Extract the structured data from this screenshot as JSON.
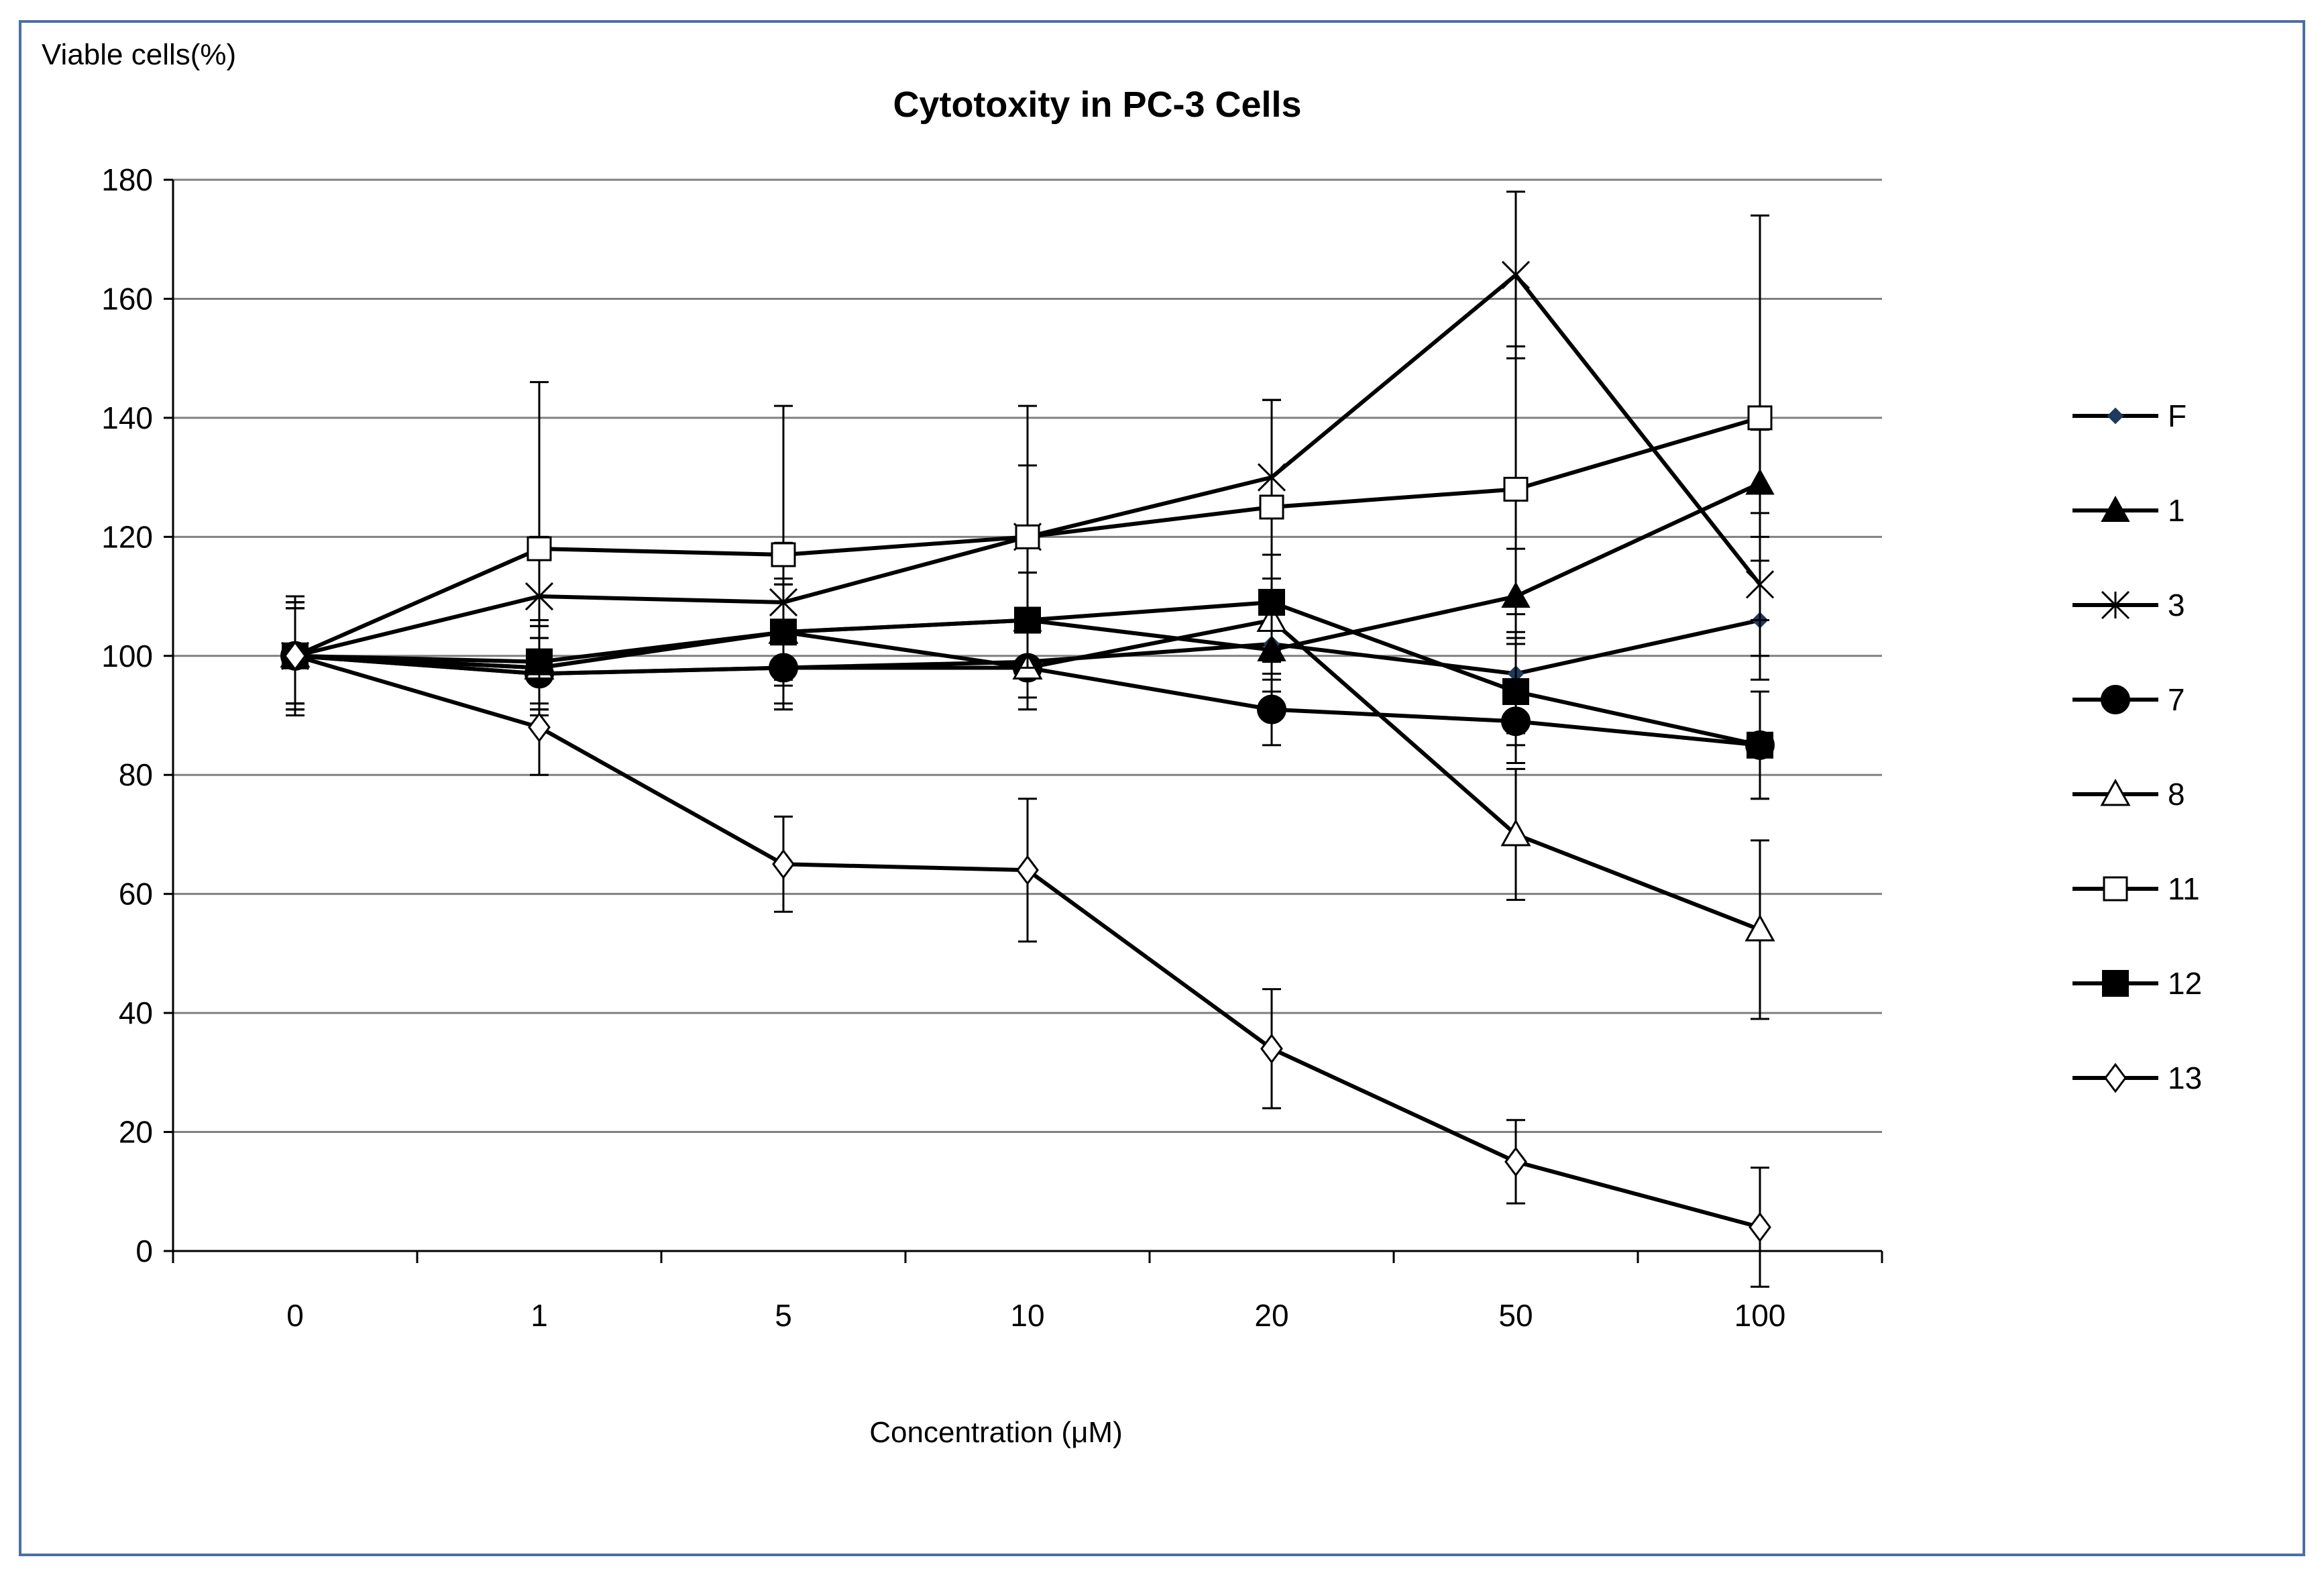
{
  "chart_data": {
    "type": "line",
    "title": "Cytotoxity in PC-3 Cells",
    "ylabel": "Viable cells(%)",
    "xlabel": "Concentration  (μM)",
    "categories": [
      "0",
      "1",
      "5",
      "10",
      "20",
      "50",
      "100"
    ],
    "ylim": [
      0,
      180
    ],
    "yticks": [
      0,
      20,
      40,
      60,
      80,
      100,
      120,
      140,
      160,
      180
    ],
    "grid": true,
    "legend_position": "right",
    "colors": {
      "line": "#000000",
      "grid": "#808080",
      "frame": "#4a6fa5",
      "marker_F": "#1f3a5f"
    },
    "series": [
      {
        "name": "F",
        "marker": "small-diamond-filled",
        "values": [
          100,
          97,
          98,
          99,
          102,
          97,
          106
        ],
        "errors": [
          9,
          6,
          7,
          6,
          6,
          10,
          10
        ]
      },
      {
        "name": "1",
        "marker": "triangle-filled",
        "values": [
          100,
          98,
          104,
          106,
          101,
          110,
          129
        ],
        "errors": [
          9,
          7,
          9,
          8,
          7,
          8,
          9
        ]
      },
      {
        "name": "3",
        "marker": "asterisk",
        "values": [
          100,
          110,
          109,
          120,
          130,
          164,
          112
        ],
        "errors": [
          10,
          10,
          10,
          12,
          13,
          14,
          12
        ]
      },
      {
        "name": "7",
        "marker": "circle-filled",
        "values": [
          100,
          97,
          98,
          98,
          91,
          89,
          85
        ],
        "errors": [
          8,
          6,
          7,
          7,
          6,
          7,
          9
        ]
      },
      {
        "name": "8",
        "marker": "triangle-open",
        "values": [
          100,
          98,
          104,
          98,
          106,
          70,
          54
        ],
        "errors": [
          9,
          7,
          8,
          7,
          7,
          11,
          15
        ]
      },
      {
        "name": "11",
        "marker": "square-open",
        "values": [
          100,
          118,
          117,
          120,
          125,
          128,
          140
        ],
        "errors": [
          9,
          28,
          25,
          22,
          18,
          24,
          34
        ]
      },
      {
        "name": "12",
        "marker": "square-filled",
        "values": [
          100,
          99,
          104,
          106,
          109,
          94,
          85
        ],
        "errors": [
          8,
          7,
          8,
          8,
          8,
          9,
          9
        ]
      },
      {
        "name": "13",
        "marker": "diamond-open",
        "values": [
          100,
          88,
          65,
          64,
          34,
          15,
          4
        ],
        "errors": [
          8,
          8,
          8,
          12,
          10,
          7,
          10
        ]
      }
    ]
  }
}
